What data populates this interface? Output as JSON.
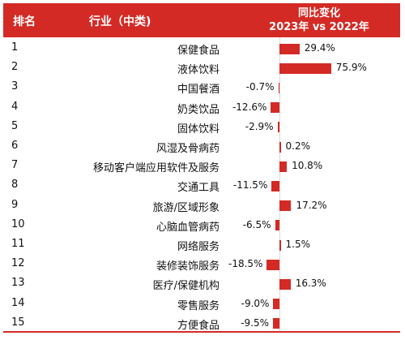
{
  "header": {
    "rank_label": "排名",
    "industry_label": "行业（中类)",
    "change_label_1": "同比变化",
    "change_label_2": "2023年 vs 2022年"
  },
  "colors": {
    "bar": "#d42a25",
    "header_bg": "#d42a25"
  },
  "chart_data": {
    "type": "bar",
    "orientation": "horizontal",
    "title": "",
    "categories": [
      "保健食品",
      "液体饮料",
      "中国餐酒",
      "奶类饮品",
      "固体饮料",
      "风湿及骨病药",
      "移动客户端应用软件及服务",
      "交通工具",
      "旅游/区域形象",
      "心脑血管病药",
      "网络服务",
      "装修装饰服务",
      "医疗/保健机构",
      "零售服务",
      "方便食品"
    ],
    "ranks": [
      "1",
      "2",
      "3",
      "4",
      "5",
      "6",
      "7",
      "8",
      "9",
      "10",
      "11",
      "12",
      "13",
      "14",
      "15"
    ],
    "values": [
      29.4,
      75.9,
      -0.7,
      -12.6,
      -2.9,
      0.2,
      10.8,
      -11.5,
      17.2,
      -6.5,
      1.5,
      -18.5,
      16.3,
      -9.0,
      -9.5
    ],
    "value_labels": [
      "29.4%",
      "75.9%",
      "-0.7%",
      "-12.6%",
      "-2.9%",
      "0.2%",
      "10.8%",
      "-11.5%",
      "17.2%",
      "-6.5%",
      "1.5%",
      "-18.5%",
      "16.3%",
      "-9.0%",
      "-9.5%"
    ],
    "xlabel": "",
    "ylabel": ""
  }
}
